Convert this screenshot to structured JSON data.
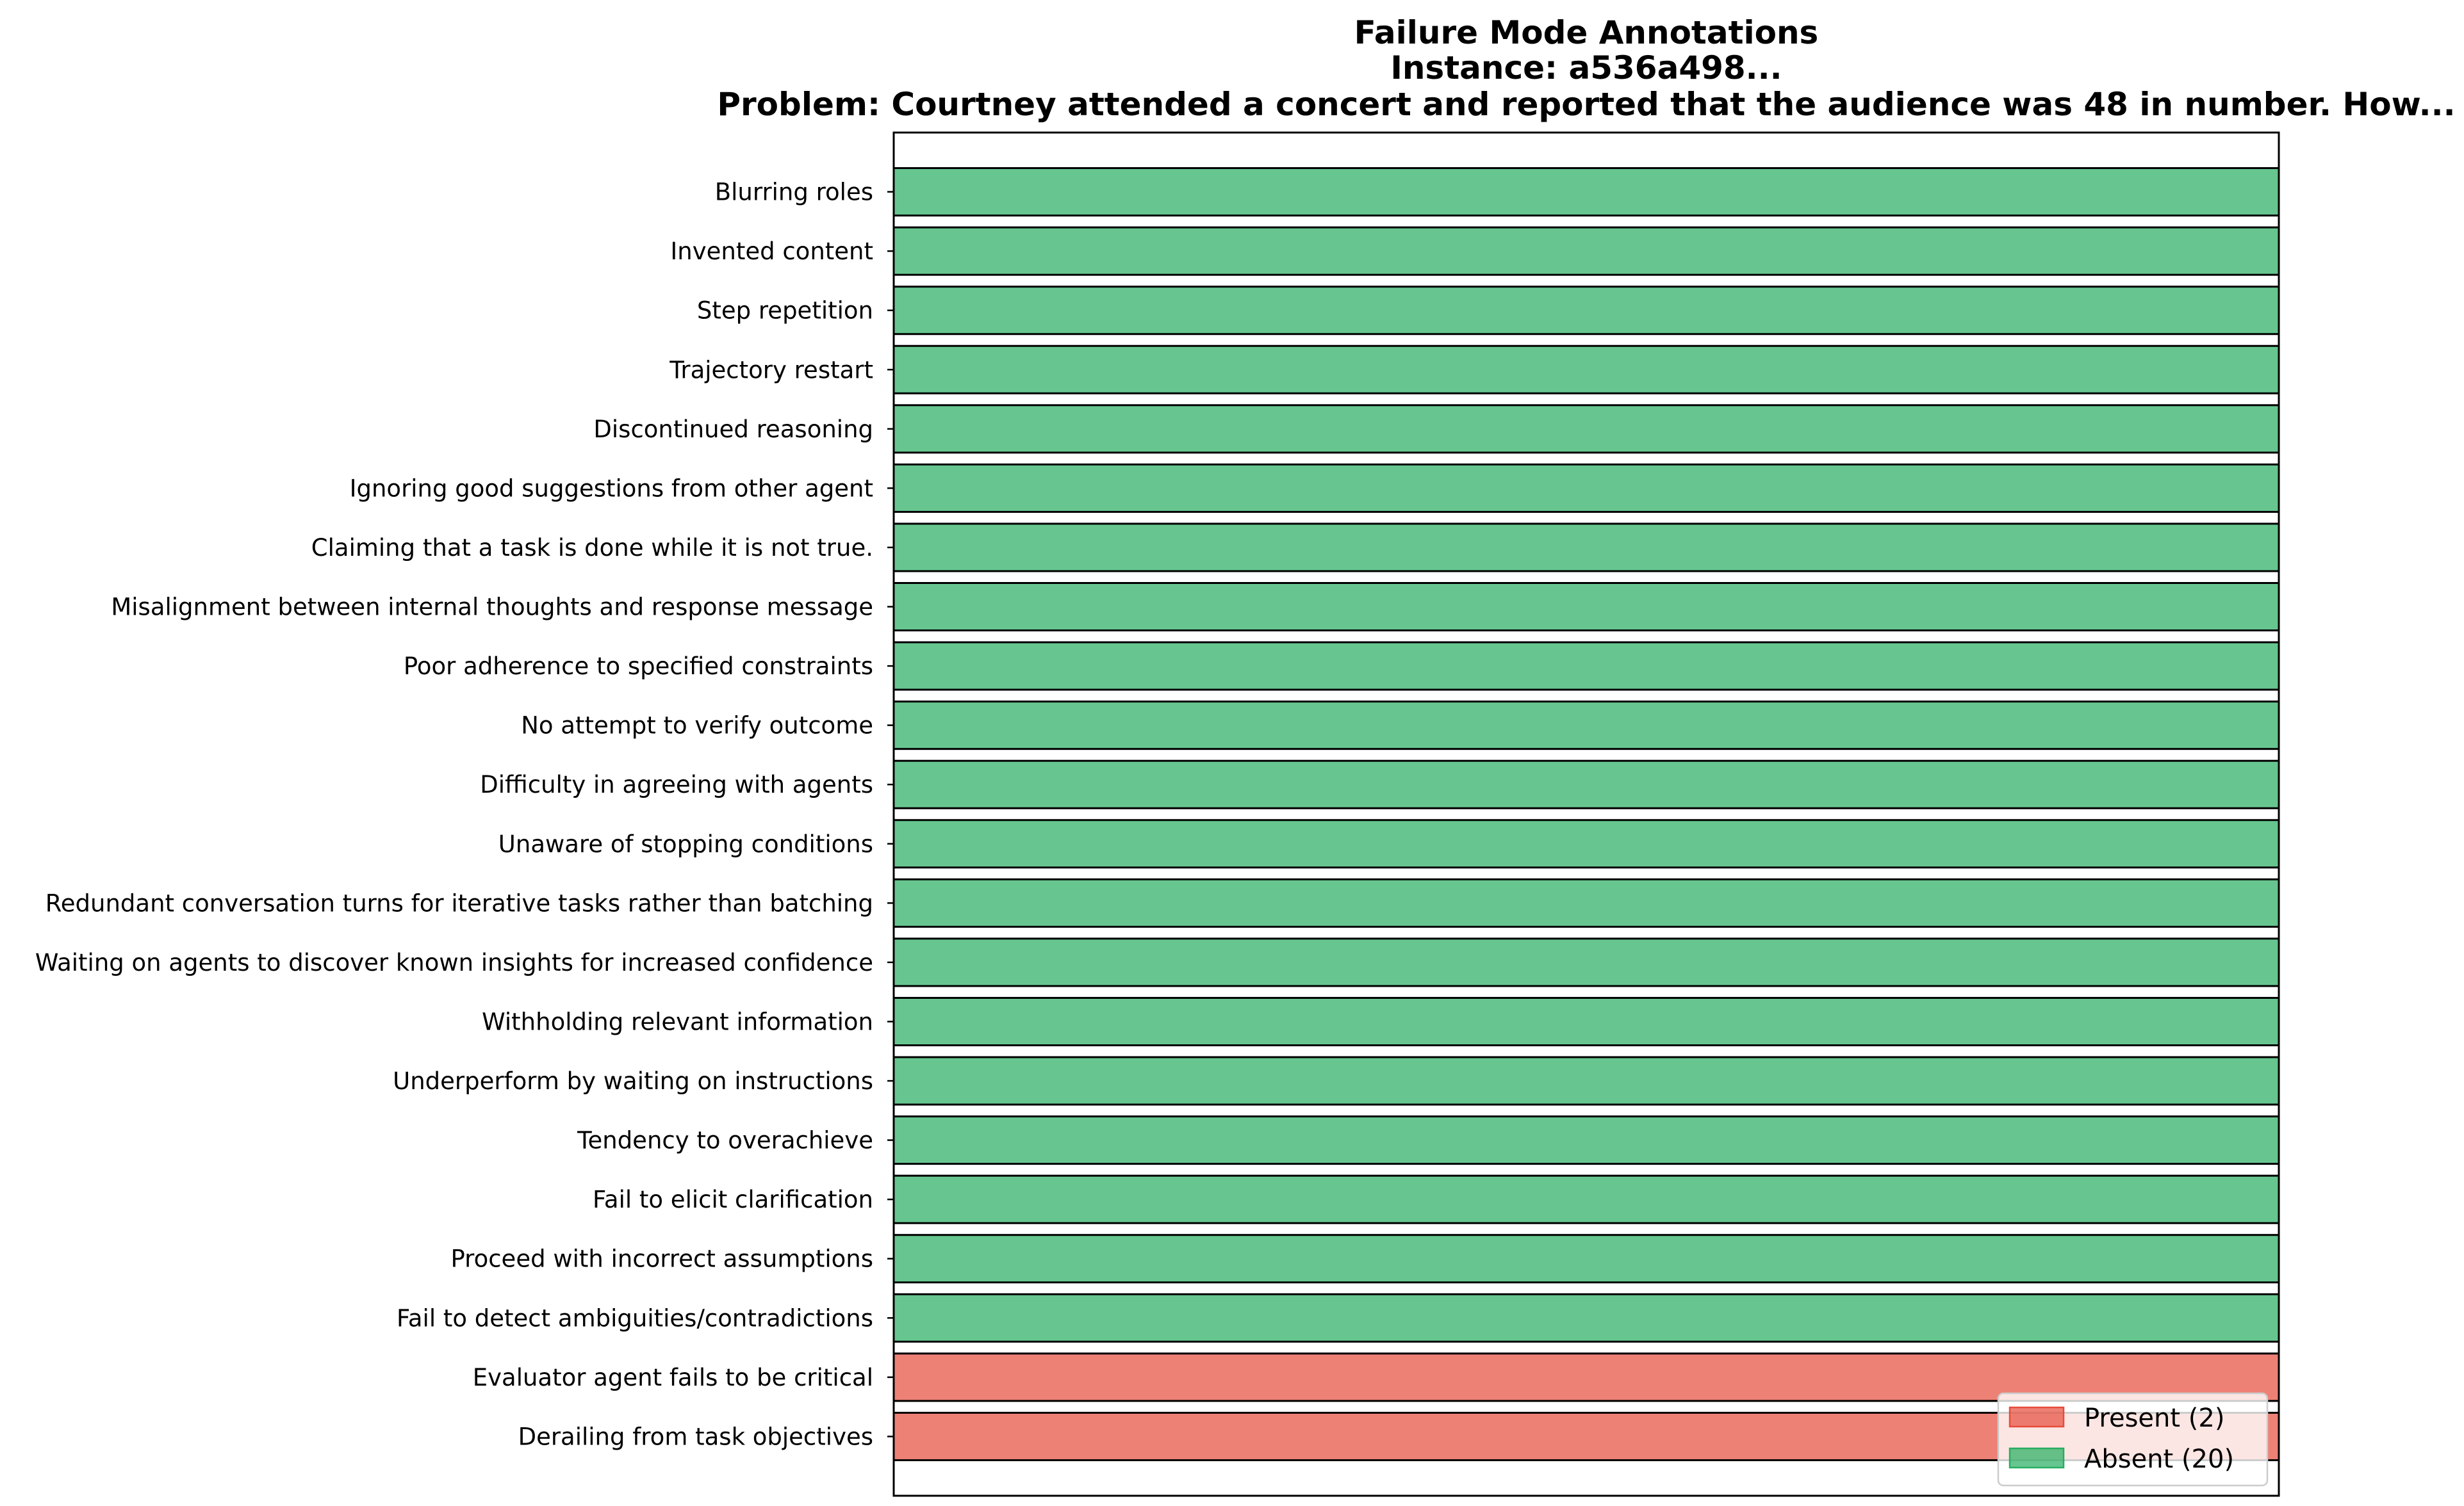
{
  "chart_data": {
    "type": "bar",
    "orientation": "horizontal",
    "title_lines": [
      "Failure Mode Annotations",
      "Instance: a536a498...",
      "Problem: Courtney attended a concert and reported that the audience was 48 in number. How..."
    ],
    "categories": [
      "Blurring roles",
      "Invented content",
      "Step repetition",
      "Trajectory restart",
      "Discontinued reasoning",
      "Ignoring good suggestions from other agent",
      "Claiming that a task is done while it is not true.",
      "Misalignment between internal thoughts and response message",
      "Poor adherence to specified constraints",
      "No attempt to verify outcome",
      "Difficulty in agreeing with agents",
      "Unaware of stopping conditions",
      "Redundant conversation turns for iterative tasks rather than batching",
      "Waiting on agents to discover known insights for increased confidence",
      "Withholding relevant information",
      "Underperform by waiting on instructions",
      "Tendency to overachieve",
      "Fail to elicit clarification",
      "Proceed with incorrect assumptions",
      "Fail to detect ambiguities/contradictions",
      "Evaluator agent fails to be critical",
      "Derailing from task objectives"
    ],
    "values": [
      1,
      1,
      1,
      1,
      1,
      1,
      1,
      1,
      1,
      1,
      1,
      1,
      1,
      1,
      1,
      1,
      1,
      1,
      1,
      1,
      1,
      1
    ],
    "status": [
      "absent",
      "absent",
      "absent",
      "absent",
      "absent",
      "absent",
      "absent",
      "absent",
      "absent",
      "absent",
      "absent",
      "absent",
      "absent",
      "absent",
      "absent",
      "absent",
      "absent",
      "absent",
      "absent",
      "absent",
      "present",
      "present"
    ],
    "xlim": [
      0,
      1
    ],
    "x_ticks_shown": false,
    "grid": false,
    "colors": {
      "present": "#e74c3c",
      "absent": "#27ae60",
      "present_alpha": 0.7,
      "absent_alpha": 0.7,
      "edge": "#000000"
    },
    "legend": {
      "placement": "lower-right",
      "entries": [
        {
          "key": "present",
          "label": "Present (2)"
        },
        {
          "key": "absent",
          "label": "Absent (20)"
        }
      ]
    }
  }
}
